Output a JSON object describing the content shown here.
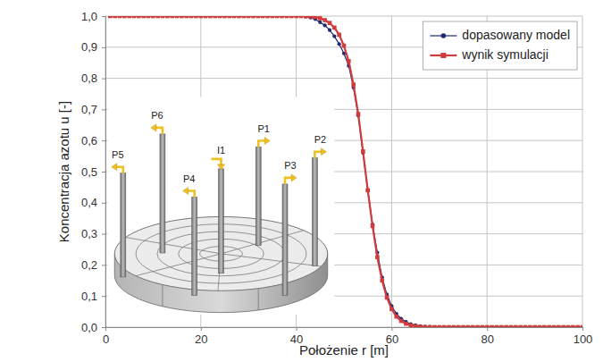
{
  "chart_data": {
    "type": "line",
    "x_label": "Położenie r [m]",
    "y_label": "Koncentracja azotu u [-]",
    "x": [
      1,
      2,
      3,
      4,
      5,
      6,
      7,
      8,
      9,
      10,
      11,
      12,
      13,
      14,
      15,
      16,
      17,
      18,
      19,
      20,
      21,
      22,
      23,
      24,
      25,
      26,
      27,
      28,
      29,
      30,
      31,
      32,
      33,
      34,
      35,
      36,
      37,
      38,
      39,
      40,
      41,
      42,
      43,
      44,
      45,
      46,
      47,
      48,
      49,
      50,
      51,
      52,
      53,
      54,
      55,
      56,
      57,
      58,
      59,
      60,
      61,
      62,
      63,
      64,
      65,
      66,
      67,
      68,
      69,
      70,
      71,
      72,
      73,
      74,
      75,
      76,
      77,
      78,
      79,
      80,
      81,
      82,
      83,
      84,
      85,
      86,
      87,
      88,
      89,
      90,
      91,
      92,
      93,
      94,
      95,
      96,
      97,
      98,
      99,
      100
    ],
    "series": [
      {
        "name": "dopasowany model",
        "color": "#1c2a6e",
        "marker": "circle",
        "values": [
          1,
          1,
          1,
          1,
          1,
          1,
          1,
          1,
          1,
          1,
          1,
          1,
          1,
          1,
          1,
          1,
          1,
          1,
          1,
          1,
          1,
          1,
          1,
          1,
          1,
          1,
          1,
          1,
          1,
          1,
          1,
          1,
          1,
          1,
          1,
          1,
          1,
          1,
          1,
          1,
          1,
          0.998,
          0.995,
          0.99,
          0.98,
          0.97,
          0.955,
          0.935,
          0.91,
          0.88,
          0.84,
          0.77,
          0.68,
          0.56,
          0.44,
          0.33,
          0.24,
          0.16,
          0.105,
          0.068,
          0.043,
          0.027,
          0.017,
          0.01,
          0.006,
          0.003,
          0.002,
          0.001,
          0,
          0,
          0,
          0,
          0,
          0,
          0,
          0,
          0,
          0,
          0,
          0,
          0,
          0,
          0,
          0,
          0,
          0,
          0,
          0,
          0,
          0,
          0,
          0,
          0,
          0,
          0,
          0,
          0,
          0,
          0,
          0
        ]
      },
      {
        "name": "wynik symulacji",
        "color": "#d13b3b",
        "marker": "square",
        "values": [
          1,
          1,
          1,
          1,
          1,
          1,
          1,
          1,
          1,
          1,
          1,
          1,
          1,
          1,
          1,
          1,
          1,
          1,
          1,
          1,
          1,
          1,
          1,
          1,
          1,
          1,
          1,
          1,
          1,
          1,
          1,
          1,
          1,
          1,
          1,
          1,
          1,
          1,
          1,
          1,
          1,
          1,
          0.999,
          0.997,
          0.993,
          0.987,
          0.978,
          0.963,
          0.94,
          0.905,
          0.855,
          0.78,
          0.685,
          0.565,
          0.44,
          0.325,
          0.225,
          0.15,
          0.095,
          0.058,
          0.034,
          0.02,
          0.011,
          0.006,
          0.003,
          0.001,
          0,
          0,
          0,
          0,
          0,
          0,
          0,
          0,
          0,
          0,
          0,
          0,
          0,
          0,
          0,
          0,
          0,
          0,
          0,
          0,
          0,
          0,
          0,
          0,
          0,
          0,
          0,
          0,
          0,
          0,
          0,
          0,
          0,
          0
        ]
      }
    ],
    "xlim": [
      0,
      100
    ],
    "ylim": [
      0,
      1
    ],
    "xticks": [
      0,
      20,
      40,
      60,
      80,
      100
    ],
    "yticks": [
      {
        "value": 0,
        "label": "0,0"
      },
      {
        "value": 0.1,
        "label": "0,1"
      },
      {
        "value": 0.2,
        "label": "0,2"
      },
      {
        "value": 0.3,
        "label": "0,3"
      },
      {
        "value": 0.4,
        "label": "0,4"
      },
      {
        "value": 0.5,
        "label": "0,5"
      },
      {
        "value": 0.6,
        "label": "0,6"
      },
      {
        "value": 0.7,
        "label": "0,7"
      },
      {
        "value": 0.8,
        "label": "0,8"
      },
      {
        "value": 0.9,
        "label": "0,9"
      },
      {
        "value": 1,
        "label": "1,0"
      }
    ],
    "grid": true,
    "legend": "upper right",
    "annotations": [
      "P6",
      "I1",
      "P1",
      "P5",
      "P4",
      "P3",
      "P2"
    ]
  }
}
